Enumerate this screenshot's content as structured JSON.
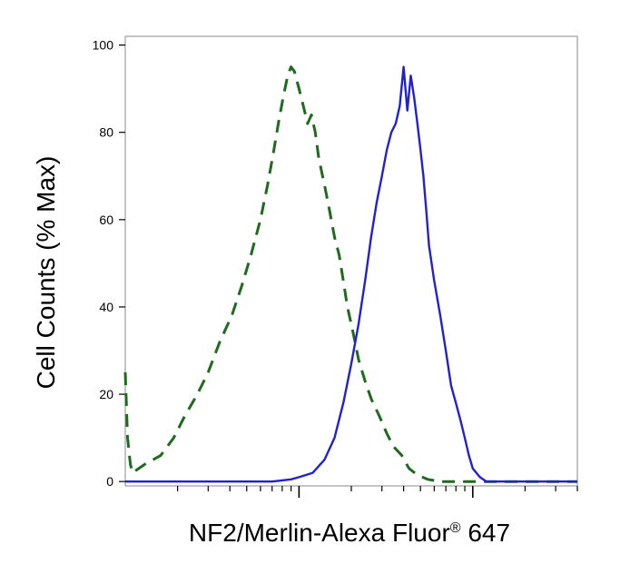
{
  "chart_data": {
    "type": "line",
    "title": "",
    "xlabel": "NF2/Merlin-Alexa Fluor",
    "xlabel_superscript": "®",
    "xlabel_suffix": " 647",
    "ylabel": "Cell Counts (% Max)",
    "xscale": "log",
    "xlim": [
      0.01,
      4
    ],
    "ylim": [
      -1,
      102
    ],
    "y_ticks": [
      0,
      20,
      40,
      60,
      80,
      100
    ],
    "y_tick_labels": [
      "0",
      "20",
      "40",
      "60",
      "80",
      "100"
    ],
    "x_major_ticks": [
      0.1,
      1
    ],
    "x_minor_ticks": [
      0.02,
      0.03,
      0.04,
      0.05,
      0.06,
      0.07,
      0.08,
      0.09,
      0.2,
      0.3,
      0.4,
      0.5,
      0.6,
      0.7,
      0.8,
      0.9,
      2,
      3,
      4
    ],
    "x_tick_labels_shown": false,
    "grid": false,
    "legend": "none",
    "series": [
      {
        "style": "dashed",
        "color": "#1e6b1e",
        "x": [
          0.01,
          0.0103,
          0.0107,
          0.011,
          0.013,
          0.016,
          0.019,
          0.022,
          0.026,
          0.03,
          0.035,
          0.041,
          0.047,
          0.053,
          0.06,
          0.066,
          0.071,
          0.076,
          0.081,
          0.086,
          0.09,
          0.094,
          0.1,
          0.106,
          0.112,
          0.118,
          0.124,
          0.13,
          0.14,
          0.15,
          0.16,
          0.17,
          0.18,
          0.19,
          0.2,
          0.21,
          0.22,
          0.24,
          0.26,
          0.29,
          0.32,
          0.35,
          0.39,
          0.43,
          0.48,
          0.55,
          0.65,
          0.8,
          1.0,
          1.5,
          3.0,
          4.0
        ],
        "y": [
          25,
          10,
          4,
          2,
          4,
          6,
          10,
          15,
          20,
          25,
          32,
          38,
          45,
          52,
          60,
          68,
          75,
          82,
          88,
          93,
          95,
          94,
          90,
          86,
          82,
          84,
          80,
          74,
          68,
          62,
          56,
          52,
          46,
          40,
          36,
          32,
          28,
          23,
          19,
          15,
          11,
          8,
          6,
          3,
          1.5,
          0.5,
          0,
          0,
          0,
          0,
          0,
          0
        ]
      },
      {
        "style": "solid",
        "color": "#2222cc",
        "x": [
          0.01,
          0.05,
          0.07,
          0.09,
          0.1,
          0.12,
          0.14,
          0.16,
          0.18,
          0.2,
          0.22,
          0.24,
          0.26,
          0.28,
          0.3,
          0.32,
          0.34,
          0.36,
          0.38,
          0.4,
          0.42,
          0.44,
          0.46,
          0.48,
          0.5,
          0.52,
          0.54,
          0.56,
          0.6,
          0.65,
          0.7,
          0.75,
          0.8,
          0.85,
          0.9,
          0.95,
          1.0,
          1.1,
          1.2,
          1.4,
          1.7,
          2.0,
          3.0,
          4.0
        ],
        "y": [
          0,
          0,
          0,
          0.5,
          1,
          2,
          5,
          10,
          18,
          27,
          36,
          46,
          56,
          64,
          70,
          76,
          80,
          82,
          86,
          95,
          85,
          93,
          88,
          82,
          76,
          70,
          62,
          54,
          46,
          38,
          30,
          22,
          18,
          14,
          10,
          6,
          3,
          1,
          0,
          0,
          0,
          0,
          0,
          0
        ]
      }
    ]
  }
}
